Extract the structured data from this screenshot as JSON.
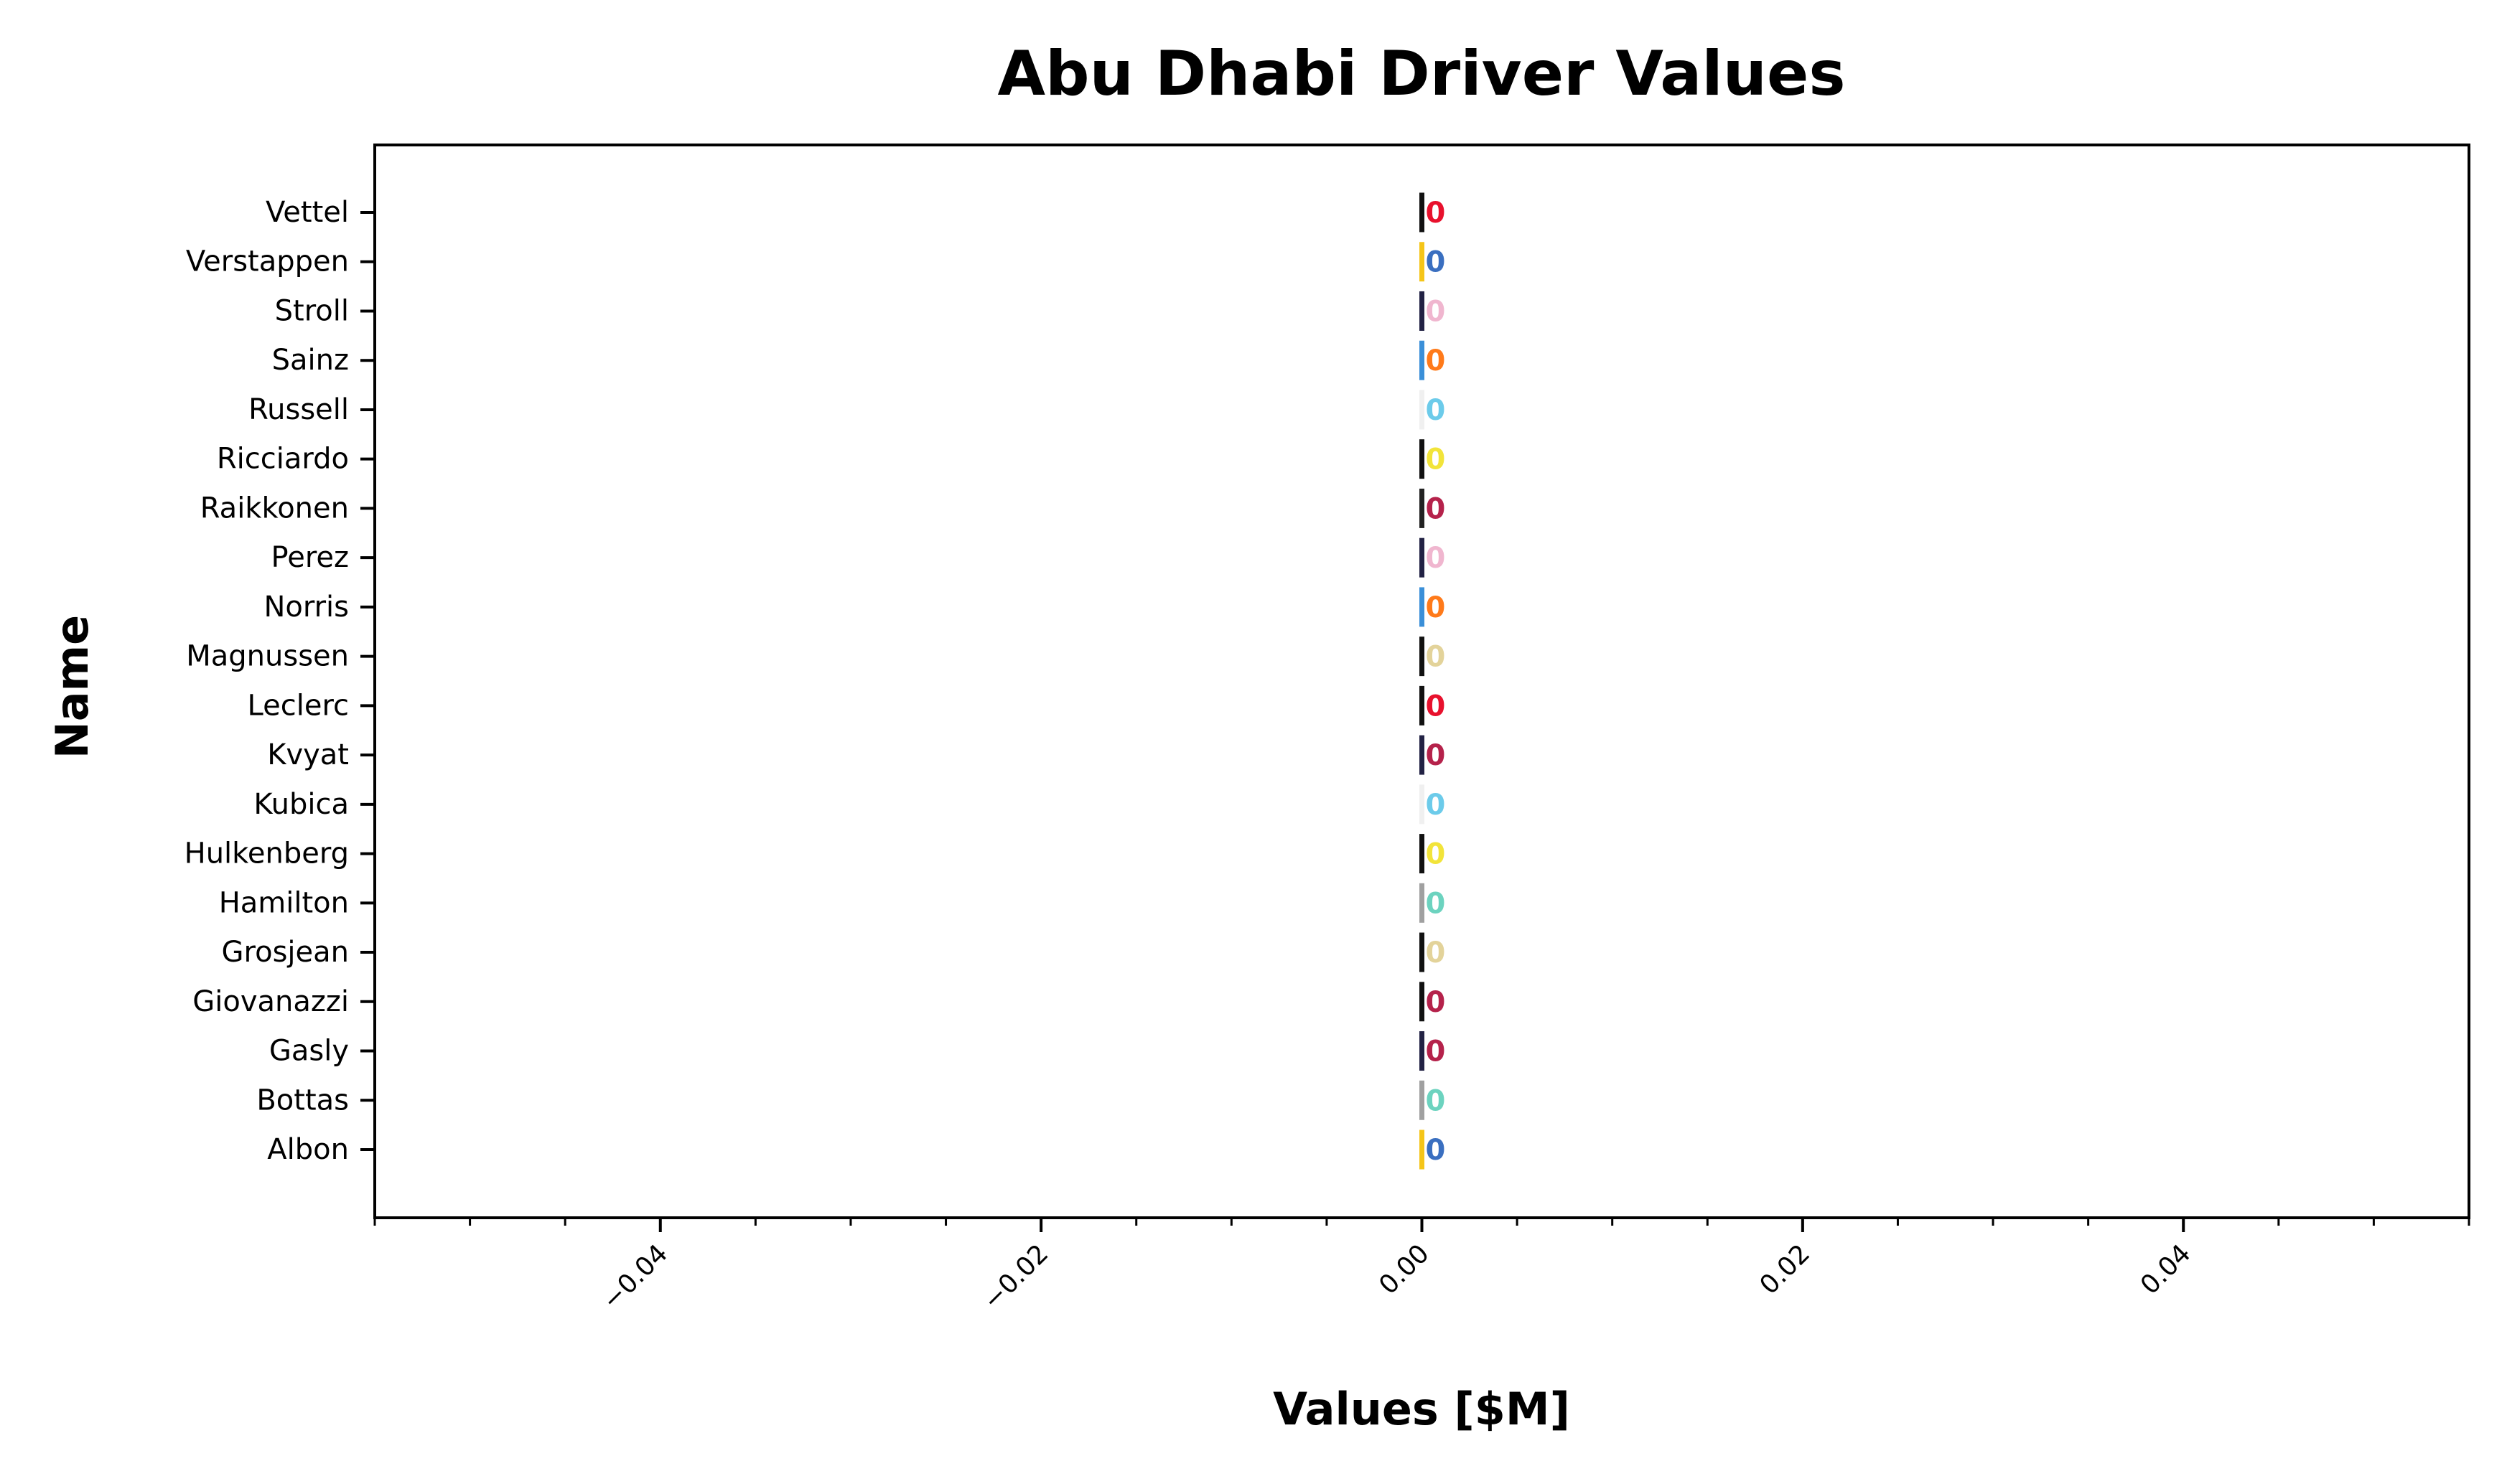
{
  "chart_data": {
    "type": "bar",
    "orientation": "horizontal",
    "title": "Abu Dhabi Driver Values",
    "xlabel": "Values [$M]",
    "ylabel": "Name",
    "xlim": [
      -0.055,
      0.055
    ],
    "xticks": [
      -0.04,
      -0.02,
      0.0,
      0.02,
      0.04
    ],
    "xtick_labels": [
      "−0.04",
      "−0.02",
      "0.00",
      "0.02",
      "0.04"
    ],
    "grid": false,
    "legend": "none",
    "categories": [
      "Vettel",
      "Verstappen",
      "Stroll",
      "Sainz",
      "Russell",
      "Ricciardo",
      "Raikkonen",
      "Perez",
      "Norris",
      "Magnussen",
      "Leclerc",
      "Kvyat",
      "Kubica",
      "Hulkenberg",
      "Hamilton",
      "Grosjean",
      "Giovanazzi",
      "Gasly",
      "Bottas",
      "Albon"
    ],
    "values": [
      0,
      0,
      0,
      0,
      0,
      0,
      0,
      0,
      0,
      0,
      0,
      0,
      0,
      0,
      0,
      0,
      0,
      0,
      0,
      0
    ],
    "value_labels": [
      "0",
      "0",
      "0",
      "0",
      "0",
      "0",
      "0",
      "0",
      "0",
      "0",
      "0",
      "0",
      "0",
      "0",
      "0",
      "0",
      "0",
      "0",
      "0",
      "0"
    ],
    "bar_colors": [
      "#111111",
      "#f5c518",
      "#222244",
      "#3a8fd8",
      "#f0f0f0",
      "#111111",
      "#222222",
      "#222244",
      "#3a8fd8",
      "#111111",
      "#111111",
      "#222244",
      "#f0f0f0",
      "#111111",
      "#a0a0a0",
      "#111111",
      "#111111",
      "#222244",
      "#a0a0a0",
      "#f5c518"
    ],
    "label_colors": [
      "#e8112d",
      "#3a6fc0",
      "#f0b6cf",
      "#ff7a1a",
      "#6ccbea",
      "#f2e43a",
      "#b5224b",
      "#f0b6cf",
      "#ff7a1a",
      "#e3d39a",
      "#e8112d",
      "#b5224b",
      "#6ccbea",
      "#f2e43a",
      "#6cd3bf",
      "#e3d39a",
      "#b5224b",
      "#b5224b",
      "#6cd3bf",
      "#3a6fc0"
    ]
  }
}
